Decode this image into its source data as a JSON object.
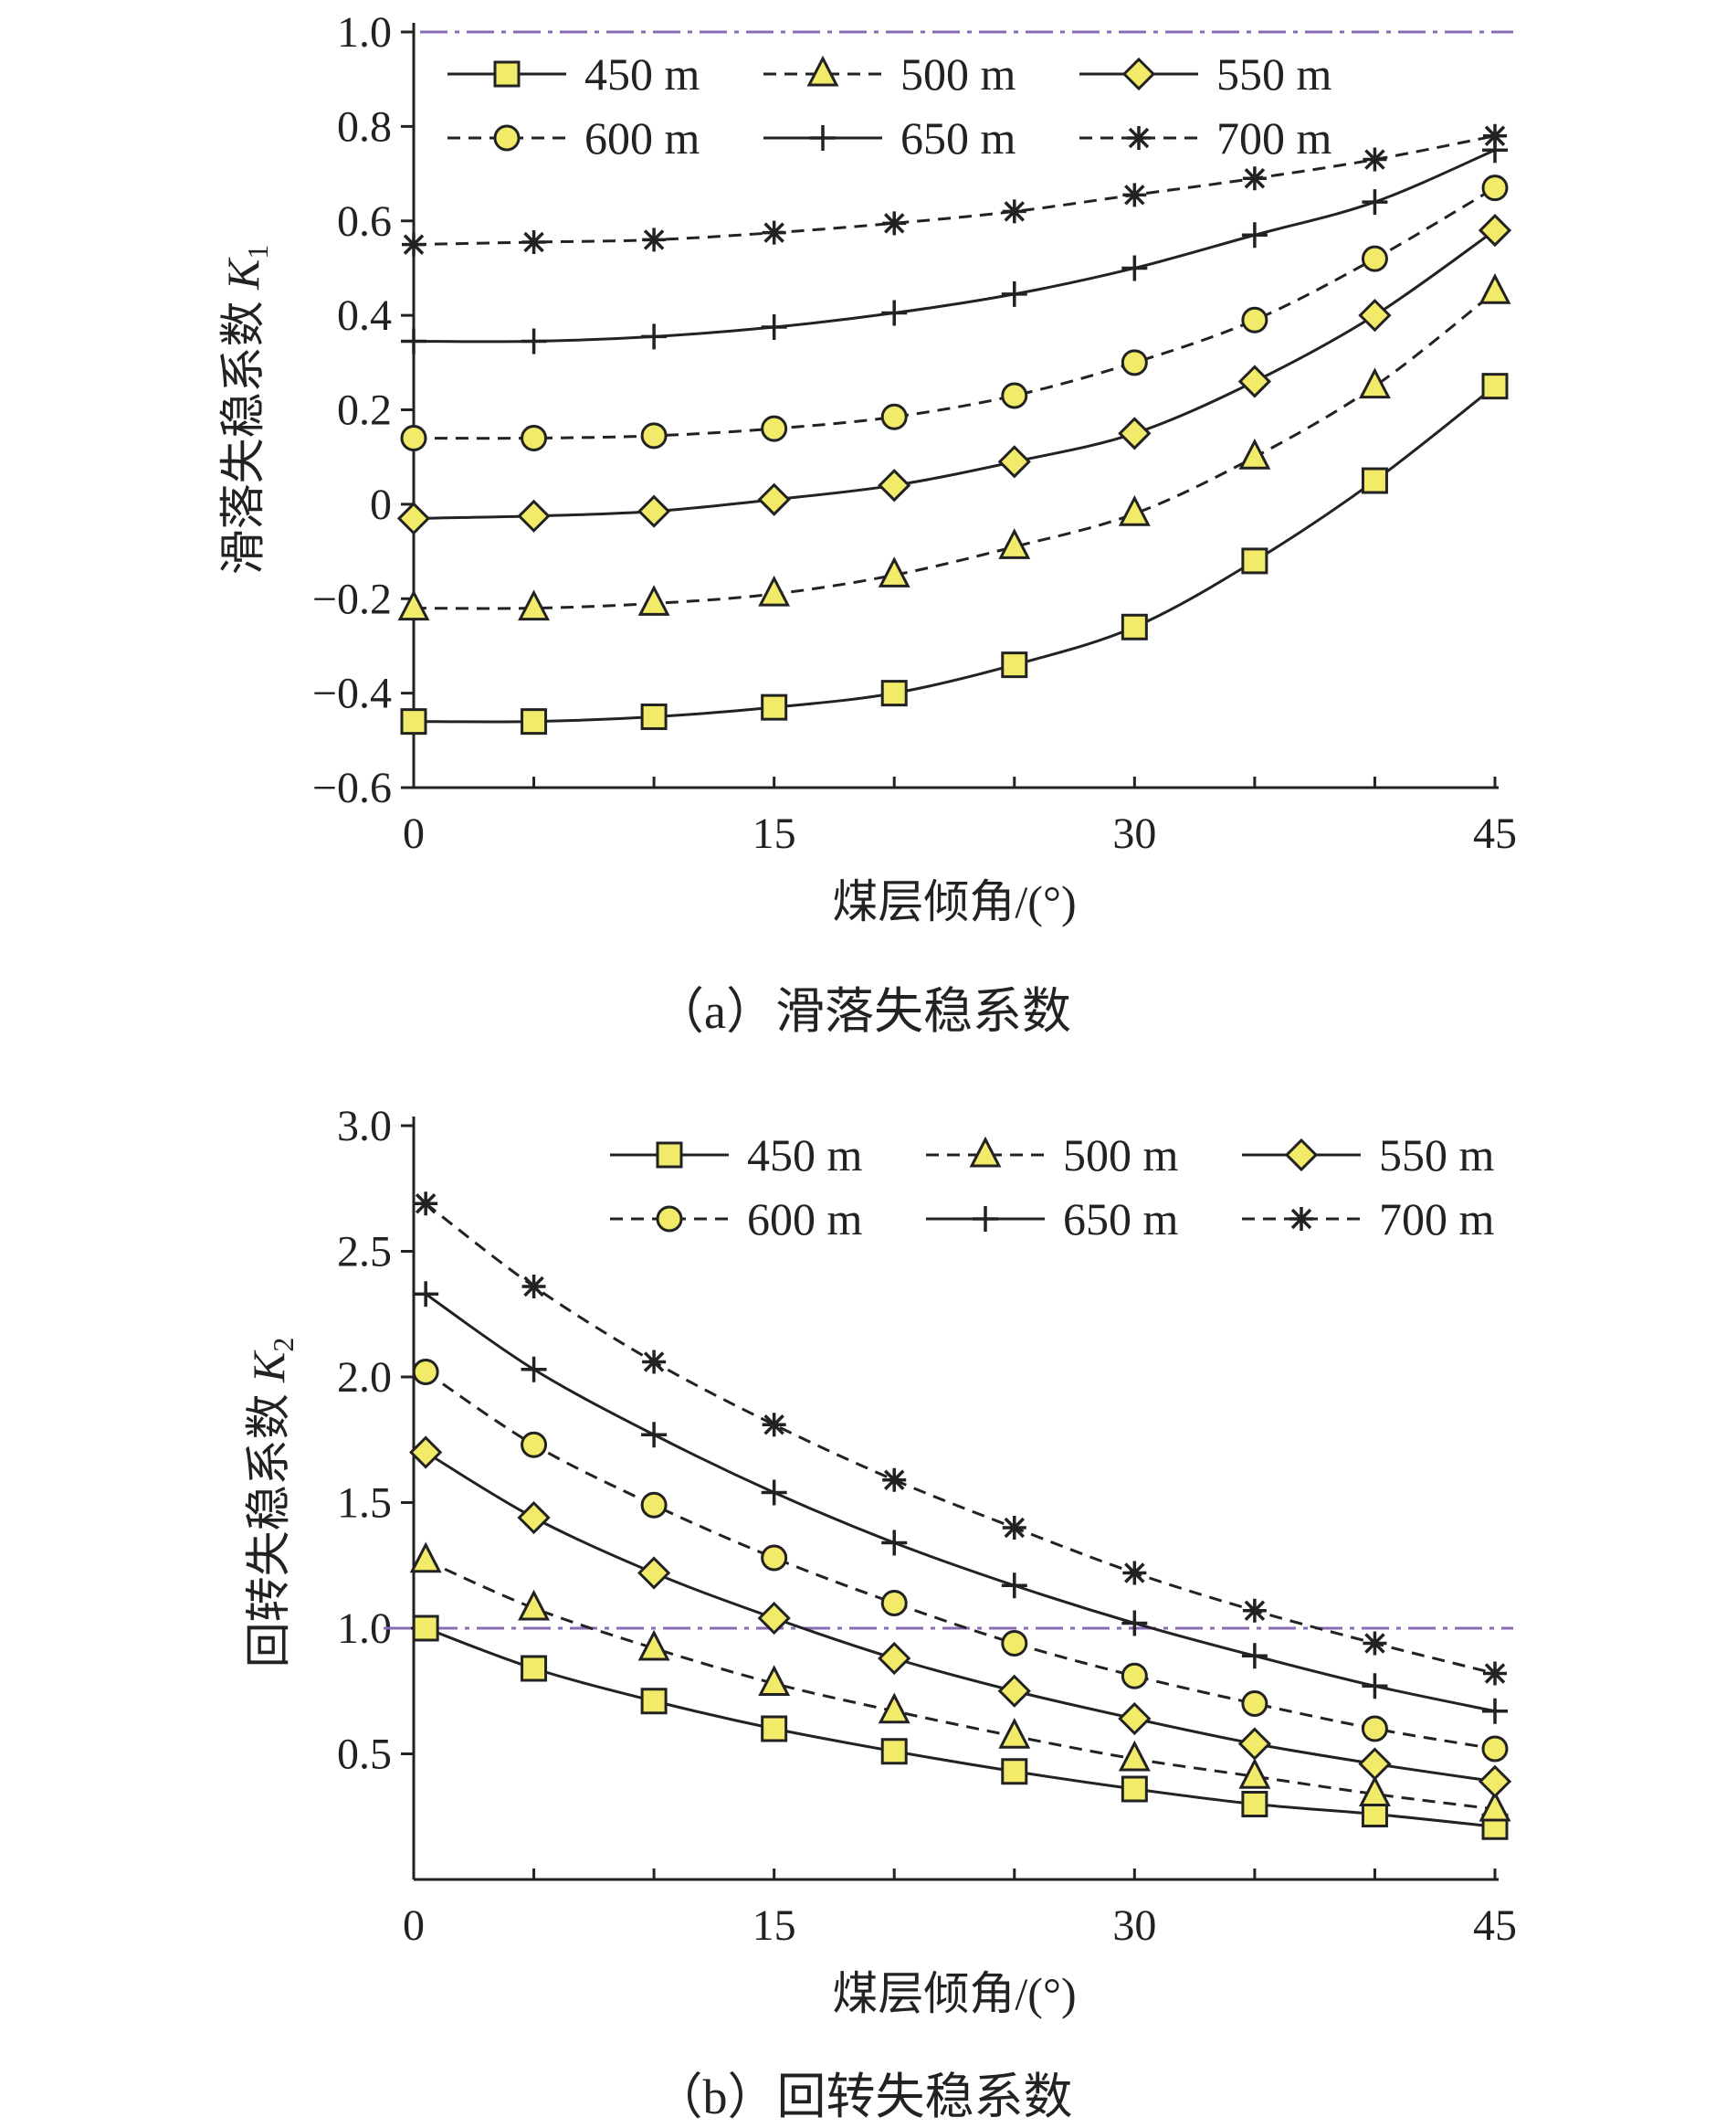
{
  "colors": {
    "marker_fill": "#f2ea69",
    "line": "#222222",
    "reference": "#8a6bb4"
  },
  "chart_data": [
    {
      "type": "line",
      "caption": "（a）滑落失稳系数",
      "xlabel": "煤层倾角/(°)",
      "ylabel": "滑落失稳系数 K",
      "ylabel_sub": "1",
      "xlim": [
        0,
        45
      ],
      "ylim": [
        -0.6,
        1.0
      ],
      "xticks": [
        "0",
        "15",
        "30",
        "45"
      ],
      "yticks": [
        "−0.6",
        "−0.4",
        "−0.2",
        "0",
        "0.2",
        "0.4",
        "0.6",
        "0.8",
        "1.0"
      ],
      "reference_y": 1.0,
      "legend_position": "top",
      "x": [
        0,
        5,
        10,
        15,
        20,
        25,
        30,
        35,
        40,
        45
      ],
      "series": [
        {
          "name": "450 m",
          "marker": "square",
          "dash": "solid",
          "values": [
            -0.46,
            -0.46,
            -0.45,
            -0.43,
            -0.4,
            -0.34,
            -0.26,
            -0.12,
            0.05,
            0.25
          ]
        },
        {
          "name": "500 m",
          "marker": "triangle",
          "dash": "dashed",
          "values": [
            -0.22,
            -0.22,
            -0.21,
            -0.19,
            -0.15,
            -0.09,
            -0.02,
            0.1,
            0.25,
            0.45
          ]
        },
        {
          "name": "550 m",
          "marker": "diamond",
          "dash": "solid",
          "values": [
            -0.03,
            -0.025,
            -0.015,
            0.01,
            0.04,
            0.09,
            0.15,
            0.26,
            0.4,
            0.58
          ]
        },
        {
          "name": "600 m",
          "marker": "circle",
          "dash": "dashed",
          "values": [
            0.14,
            0.14,
            0.145,
            0.16,
            0.185,
            0.23,
            0.3,
            0.39,
            0.52,
            0.67
          ]
        },
        {
          "name": "650 m",
          "marker": "plus",
          "dash": "solid",
          "values": [
            0.345,
            0.345,
            0.355,
            0.375,
            0.405,
            0.445,
            0.5,
            0.57,
            0.64,
            0.75
          ]
        },
        {
          "name": "700 m",
          "marker": "star",
          "dash": "dashed",
          "values": [
            0.55,
            0.555,
            0.56,
            0.575,
            0.595,
            0.62,
            0.655,
            0.69,
            0.73,
            0.78
          ]
        }
      ]
    },
    {
      "type": "line",
      "caption": "（b）回转失稳系数",
      "xlabel": "煤层倾角/(°)",
      "ylabel": "回转失稳系数 K",
      "ylabel_sub": "2",
      "xlim": [
        0,
        45
      ],
      "ylim": [
        0.0,
        3.0
      ],
      "xticks": [
        "0",
        "15",
        "30",
        "45"
      ],
      "yticks": [
        "0.5",
        "1.0",
        "1.5",
        "2.0",
        "2.5",
        "3.0"
      ],
      "reference_y": 1.0,
      "legend_position": "top-right",
      "x": [
        0.5,
        5,
        10,
        15,
        20,
        25,
        30,
        35,
        40,
        45
      ],
      "series": [
        {
          "name": "450 m",
          "marker": "square",
          "dash": "solid",
          "values": [
            1.0,
            0.84,
            0.71,
            0.6,
            0.51,
            0.43,
            0.36,
            0.3,
            0.26,
            0.21
          ]
        },
        {
          "name": "500 m",
          "marker": "triangle",
          "dash": "dashed",
          "values": [
            1.27,
            1.08,
            0.92,
            0.78,
            0.67,
            0.57,
            0.48,
            0.41,
            0.34,
            0.28
          ]
        },
        {
          "name": "550 m",
          "marker": "diamond",
          "dash": "solid",
          "values": [
            1.7,
            1.44,
            1.22,
            1.04,
            0.88,
            0.75,
            0.64,
            0.54,
            0.46,
            0.39
          ]
        },
        {
          "name": "600 m",
          "marker": "circle",
          "dash": "dashed",
          "values": [
            2.02,
            1.73,
            1.49,
            1.28,
            1.1,
            0.94,
            0.81,
            0.7,
            0.6,
            0.52
          ]
        },
        {
          "name": "650 m",
          "marker": "plus",
          "dash": "solid",
          "values": [
            2.33,
            2.03,
            1.77,
            1.54,
            1.34,
            1.17,
            1.02,
            0.89,
            0.77,
            0.67
          ]
        },
        {
          "name": "700 m",
          "marker": "star",
          "dash": "dashed",
          "values": [
            2.69,
            2.36,
            2.06,
            1.81,
            1.59,
            1.4,
            1.22,
            1.07,
            0.94,
            0.82
          ]
        }
      ]
    }
  ]
}
